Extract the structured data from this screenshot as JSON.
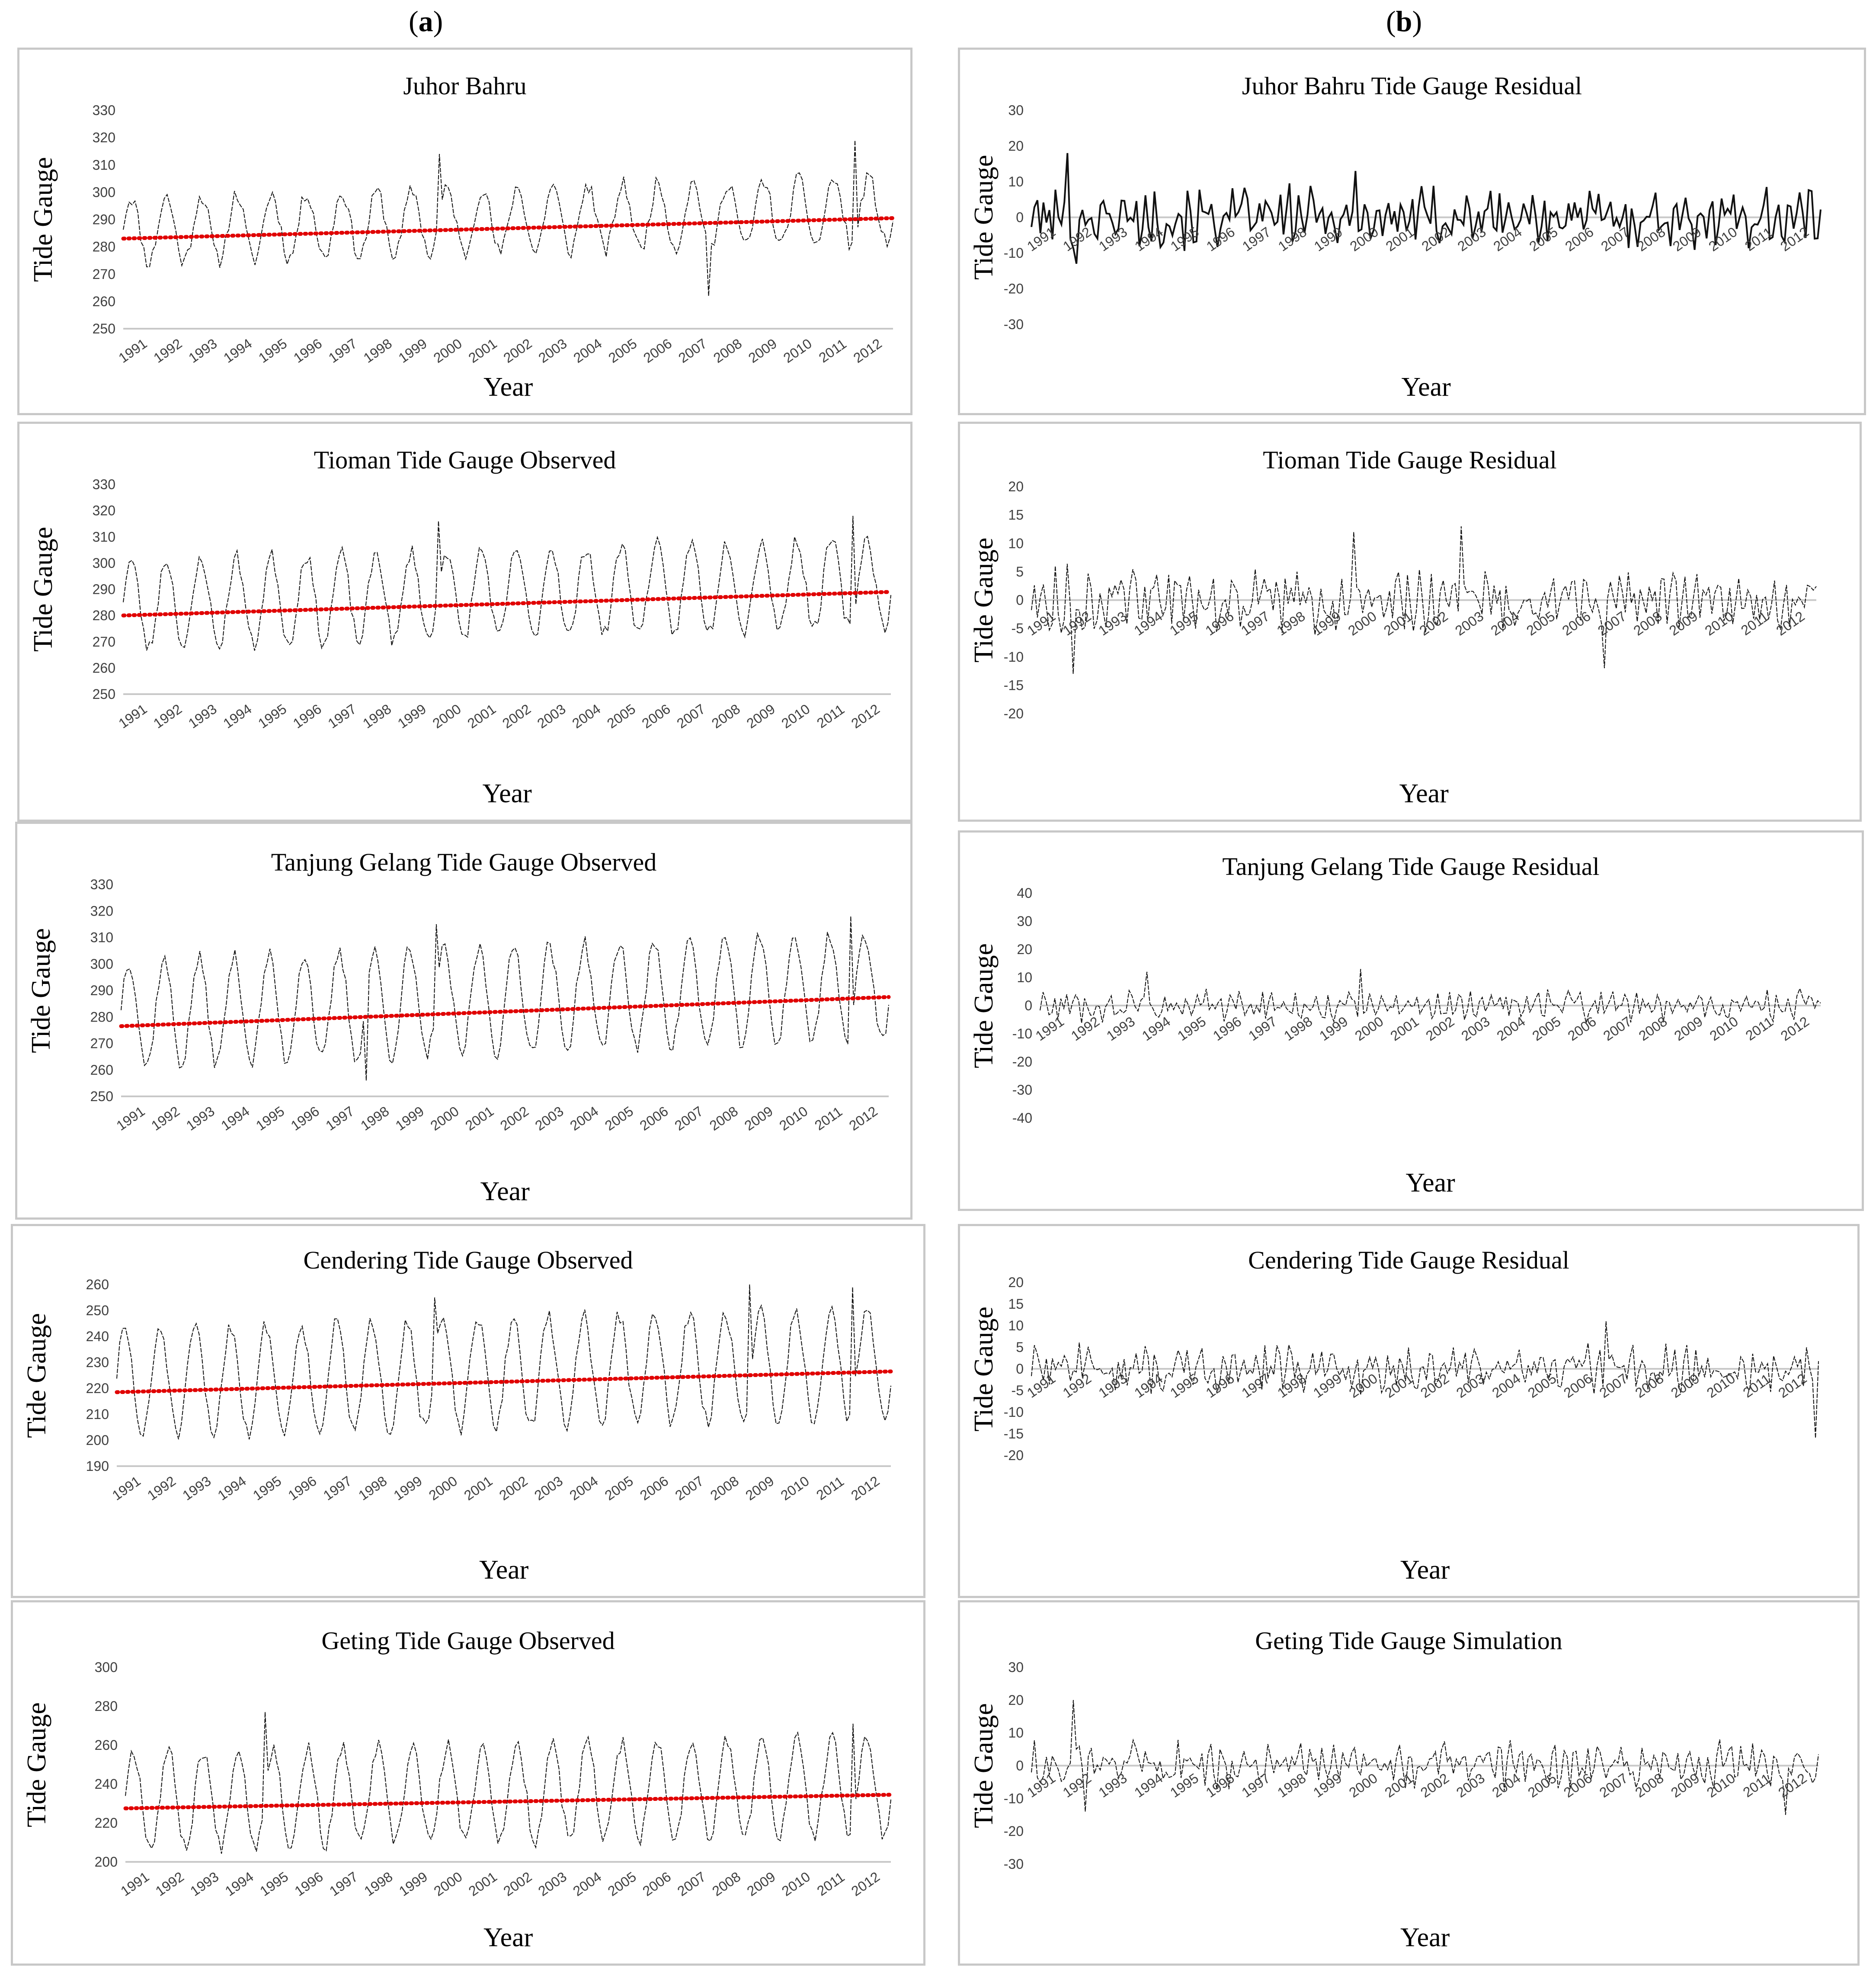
{
  "column_labels": {
    "a": "a",
    "b": "b"
  },
  "chart_data": [
    {
      "id": "a1",
      "type": "line",
      "title": "Juhor Bahru",
      "ylabel": "Tide Gauge",
      "xlabel": "Year",
      "ylim": [
        250,
        330
      ],
      "yticks": [
        250,
        260,
        270,
        280,
        290,
        300,
        310,
        320,
        330
      ],
      "year_labels": [
        "1991",
        "1992",
        "1993",
        "1994",
        "1995",
        "1996",
        "1997",
        "1998",
        "1999",
        "2000",
        "2001",
        "2002",
        "2003",
        "2004",
        "2005",
        "2006",
        "2007",
        "2008",
        "2009",
        "2010",
        "2011",
        "2012"
      ],
      "series": [
        {
          "name": "Observed",
          "mean": 286,
          "amp": 12,
          "noise": 3,
          "seed": 11,
          "spikes": {
            "108": 314,
            "200": 262,
            "250": 319
          }
        },
        {
          "name": "Trend",
          "start": 283,
          "end": 290.5,
          "style": "trend"
        }
      ]
    },
    {
      "id": "a2",
      "type": "line",
      "title": "Tioman Tide Gauge Observed",
      "ylabel": "Tide Gauge",
      "xlabel": "Year",
      "ylim": [
        250,
        330
      ],
      "yticks": [
        250,
        260,
        270,
        280,
        290,
        300,
        310,
        320,
        330
      ],
      "year_labels": [
        "1991",
        "1992",
        "1993",
        "1994",
        "1995",
        "1996",
        "1997",
        "1998",
        "1999",
        "2000",
        "2001",
        "2002",
        "2003",
        "2004",
        "2005",
        "2006",
        "2007",
        "2008",
        "2009",
        "2010",
        "2011",
        "2012"
      ],
      "series": [
        {
          "name": "Observed",
          "mean": 284,
          "amp": 17,
          "noise": 3,
          "seed": 23,
          "spikes": {
            "108": 316,
            "250": 318
          }
        },
        {
          "name": "Trend",
          "start": 280,
          "end": 289,
          "style": "trend"
        }
      ]
    },
    {
      "id": "a3",
      "type": "line",
      "title": "Tanjung Gelang Tide Gauge Observed",
      "ylabel": "Tide Gauge",
      "xlabel": "Year",
      "ylim": [
        250,
        330
      ],
      "yticks": [
        250,
        260,
        270,
        280,
        290,
        300,
        310,
        320,
        330
      ],
      "year_labels": [
        "1991",
        "1992",
        "1993",
        "1994",
        "1995",
        "1996",
        "1997",
        "1998",
        "1999",
        "2000",
        "2001",
        "2002",
        "2003",
        "2004",
        "2005",
        "2006",
        "2007",
        "2008",
        "2009",
        "2010",
        "2011",
        "2012"
      ],
      "series": [
        {
          "name": "Observed",
          "mean": 281,
          "amp": 20,
          "noise": 3,
          "seed": 37,
          "spikes": {
            "108": 315,
            "84": 256,
            "250": 318
          }
        },
        {
          "name": "Trend",
          "start": 276.5,
          "end": 287.5,
          "style": "trend"
        }
      ]
    },
    {
      "id": "a4",
      "type": "line",
      "title": "Cendering Tide Gauge Observed",
      "ylabel": "Tide Gauge",
      "xlabel": "Year",
      "ylim": [
        190,
        260
      ],
      "yticks": [
        190,
        200,
        210,
        220,
        230,
        240,
        250,
        260
      ],
      "year_labels": [
        "1991",
        "1992",
        "1993",
        "1994",
        "1995",
        "1996",
        "1997",
        "1998",
        "1999",
        "2000",
        "2001",
        "2002",
        "2003",
        "2004",
        "2005",
        "2006",
        "2007",
        "2008",
        "2009",
        "2010",
        "2011",
        "2012"
      ],
      "series": [
        {
          "name": "Observed",
          "mean": 222,
          "amp": 21,
          "noise": 3,
          "seed": 51,
          "spikes": {
            "108": 255,
            "215": 261,
            "250": 259
          }
        },
        {
          "name": "Trend",
          "start": 218.5,
          "end": 226.5,
          "style": "trend"
        }
      ]
    },
    {
      "id": "a5",
      "type": "line",
      "title": "Geting Tide Gauge Observed",
      "ylabel": "Tide Gauge",
      "xlabel": "Year",
      "ylim": [
        200,
        300
      ],
      "yticks": [
        200,
        220,
        240,
        260,
        280,
        300
      ],
      "year_labels": [
        "1991",
        "1992",
        "1993",
        "1994",
        "1995",
        "1996",
        "1997",
        "1998",
        "1999",
        "2000",
        "2001",
        "2002",
        "2003",
        "2004",
        "2005",
        "2006",
        "2007",
        "2008",
        "2009",
        "2010",
        "2011",
        "2012"
      ],
      "series": [
        {
          "name": "Observed",
          "mean": 232,
          "amp": 25,
          "noise": 4,
          "seed": 67,
          "spikes": {
            "48": 277,
            "250": 271
          }
        },
        {
          "name": "Trend",
          "start": 227.5,
          "end": 234.5,
          "style": "trend"
        }
      ]
    },
    {
      "id": "b1",
      "type": "line",
      "title": "Juhor Bahru Tide Gauge Residual",
      "ylabel": "Tide Gauge",
      "xlabel": "Year",
      "ylim": [
        -30,
        30
      ],
      "yticks": [
        -30,
        -20,
        -10,
        0,
        10,
        20,
        30
      ],
      "year_labels": [
        "1991",
        "1992",
        "1993",
        "1994",
        "1995",
        "1996",
        "1997",
        "1998",
        "1999",
        "2000",
        "2001",
        "2002",
        "2003",
        "2004",
        "2005",
        "2006",
        "2007",
        "2008",
        "2009",
        "2010",
        "2011",
        "2012"
      ],
      "series": [
        {
          "name": "Residual",
          "mean": 0,
          "amp": 0,
          "noise": 6,
          "seed": 101,
          "spikes": {
            "12": 18,
            "15": -13,
            "108": 13
          }
        }
      ]
    },
    {
      "id": "b2",
      "type": "line",
      "title": "Tioman Tide Gauge Residual",
      "ylabel": "Tide Gauge",
      "xlabel": "Year",
      "ylim": [
        -20,
        20
      ],
      "yticks": [
        -20,
        -15,
        -10,
        -5,
        0,
        5,
        10,
        15,
        20
      ],
      "year_labels": [
        "1991",
        "1992",
        "1993",
        "1994",
        "1995",
        "1996",
        "1997",
        "1998",
        "1999",
        "2000",
        "2001",
        "2002",
        "2003",
        "2004",
        "2005",
        "2006",
        "2007",
        "2008",
        "2009",
        "2010",
        "2011",
        "2012"
      ],
      "series": [
        {
          "name": "Residual",
          "mean": 0,
          "amp": 0,
          "noise": 4,
          "seed": 113,
          "spikes": {
            "14": -13,
            "108": 12,
            "144": 13,
            "192": -12
          }
        }
      ]
    },
    {
      "id": "b3",
      "type": "line",
      "title": "Tanjung Gelang Tide Gauge Residual",
      "ylabel": "Tide Gauge",
      "xlabel": "Year",
      "ylim": [
        -40,
        40
      ],
      "yticks": [
        -40,
        -30,
        -20,
        -10,
        0,
        10,
        20,
        30,
        40
      ],
      "year_labels": [
        "1991",
        "1992",
        "1993",
        "1994",
        "1995",
        "1996",
        "1997",
        "1998",
        "1999",
        "2000",
        "2001",
        "2002",
        "2003",
        "2004",
        "2005",
        "2006",
        "2007",
        "2008",
        "2009",
        "2010",
        "2011",
        "2012"
      ],
      "series": [
        {
          "name": "Residual",
          "mean": 0,
          "amp": 0,
          "noise": 4,
          "seed": 127,
          "spikes": {
            "36": 12,
            "108": 13
          }
        }
      ]
    },
    {
      "id": "b4",
      "type": "line",
      "title": "Cendering Tide Gauge Residual",
      "ylabel": "Tide Gauge",
      "xlabel": "Year",
      "ylim": [
        -20,
        20
      ],
      "yticks": [
        -20,
        -15,
        -10,
        -5,
        0,
        5,
        10,
        15,
        20
      ],
      "year_labels": [
        "1991",
        "1992",
        "1993",
        "1994",
        "1995",
        "1996",
        "1997",
        "1998",
        "1999",
        "2000",
        "2001",
        "2002",
        "2003",
        "2004",
        "2005",
        "2006",
        "2007",
        "2008",
        "2009",
        "2010",
        "2011",
        "2012"
      ],
      "series": [
        {
          "name": "Residual",
          "mean": 0,
          "amp": 0,
          "noise": 4,
          "seed": 139,
          "spikes": {
            "192": 11,
            "262": -16
          }
        }
      ]
    },
    {
      "id": "b5",
      "type": "line",
      "title": "Geting Tide Gauge Simulation",
      "ylabel": "Tide Gauge",
      "xlabel": "Year",
      "ylim": [
        -30,
        30
      ],
      "yticks": [
        -30,
        -20,
        -10,
        0,
        10,
        20,
        30
      ],
      "year_labels": [
        "1991",
        "1992",
        "1993",
        "1994",
        "1995",
        "1996",
        "1997",
        "1998",
        "1999",
        "2000",
        "2001",
        "2002",
        "2003",
        "2004",
        "2005",
        "2006",
        "2007",
        "2008",
        "2009",
        "2010",
        "2011",
        "2012"
      ],
      "series": [
        {
          "name": "Residual",
          "mean": 0,
          "amp": 0,
          "noise": 5,
          "seed": 151,
          "spikes": {
            "14": 20,
            "18": -14,
            "252": -15
          }
        }
      ]
    }
  ]
}
